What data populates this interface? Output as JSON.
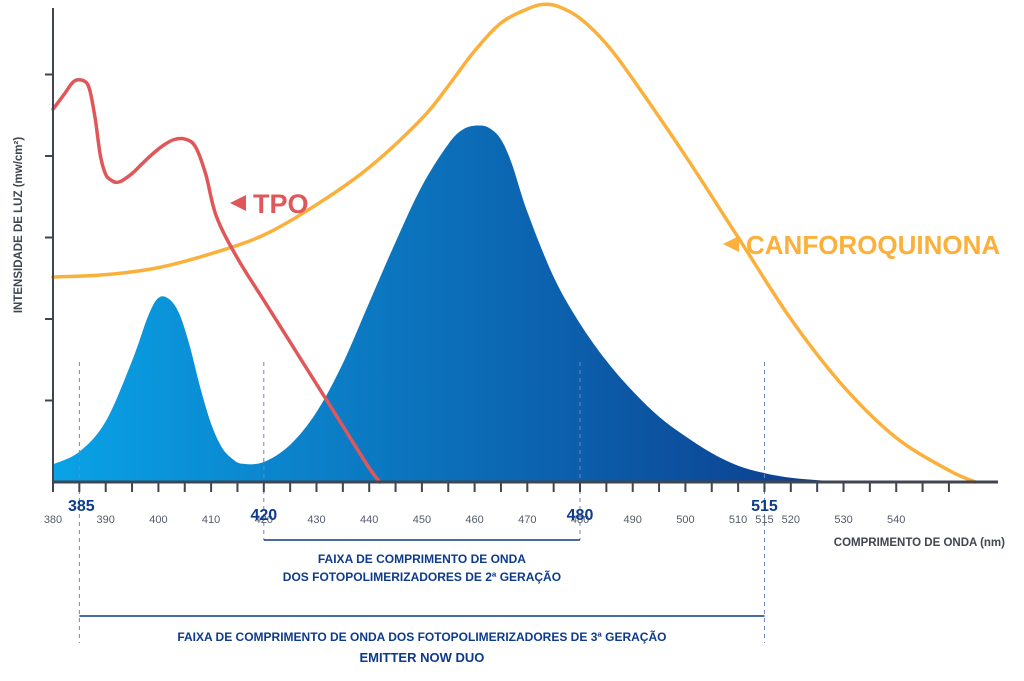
{
  "chart_data": {
    "type": "area",
    "xlabel": "COMPRIMENTO DE ONDA (nm)",
    "ylabel": "INTENSIDADE DE LUZ (mw/cm²)",
    "xlim": [
      380,
      554
    ],
    "ylim": [
      0,
      100
    ],
    "x_ticks": [
      380,
      390,
      400,
      410,
      420,
      430,
      440,
      450,
      460,
      470,
      480,
      490,
      500,
      510,
      515,
      520,
      530,
      540
    ],
    "highlighted_ticks": [
      385,
      420,
      480,
      515
    ],
    "y_tick_count": 6,
    "grid": false,
    "colors": {
      "tpo": "#e0575a",
      "canforoquinona": "#fbb03b",
      "emission_light": "#0aa2e6",
      "emission_dark": "#0d3b8c",
      "axis": "#3f4650",
      "ranges": "#0d3b8c"
    },
    "series": [
      {
        "name": "TPO",
        "kind": "line",
        "label": "TPO",
        "x": [
          380,
          382,
          384,
          386,
          387,
          388,
          389,
          390,
          391,
          392,
          393,
          395,
          397,
          399,
          401,
          403,
          405,
          407,
          409,
          411,
          415,
          420,
          425,
          430,
          435,
          440,
          442
        ],
        "y": [
          80,
          83,
          86,
          86,
          84,
          78,
          70,
          66,
          64.8,
          64.3,
          64.6,
          66.2,
          68.4,
          70.5,
          72.3,
          73.5,
          73.6,
          72.0,
          66.0,
          57.0,
          48.0,
          39.0,
          30.0,
          21.0,
          12.0,
          3.0,
          0
        ]
      },
      {
        "name": "CANFOROQUINONA",
        "kind": "line",
        "label": "CANFOROQUINONA",
        "x": [
          380,
          390,
          400,
          410,
          420,
          430,
          440,
          450,
          455,
          460,
          465,
          470,
          473,
          476,
          480,
          485,
          490,
          500,
          510,
          520,
          530,
          540,
          550,
          555
        ],
        "y": [
          44,
          44.5,
          46,
          49,
          53,
          59.5,
          67.5,
          78,
          85,
          92.5,
          98.5,
          101.5,
          102.5,
          102,
          99.5,
          94,
          86.5,
          70,
          52.5,
          35,
          20.5,
          9.5,
          2.5,
          0
        ]
      },
      {
        "name": "Emitter",
        "kind": "area",
        "x": [
          380,
          385,
          390,
          395,
          398,
          400,
          402,
          404,
          406,
          408,
          410,
          412,
          414,
          416,
          420,
          425,
          430,
          435,
          440,
          445,
          450,
          455,
          458,
          461,
          463,
          465,
          467,
          470,
          475,
          480,
          485,
          490,
          495,
          500,
          505,
          510,
          515,
          520,
          525,
          530,
          533
        ],
        "y": [
          3.8,
          6.5,
          13,
          26,
          35.5,
          39.5,
          39.3,
          36,
          29,
          20,
          12.5,
          7.5,
          5,
          3.9,
          4.3,
          8,
          15,
          25.5,
          38.5,
          51.5,
          63.5,
          72.5,
          75.8,
          76.5,
          75.8,
          73.5,
          68.5,
          58,
          44,
          34,
          26,
          19.5,
          14,
          9.8,
          6.2,
          3.5,
          1.9,
          0.9,
          0.4,
          0.1,
          0
        ]
      }
    ],
    "ranges": [
      {
        "from": 420,
        "to": 480,
        "label_line1": "FAIXA DE COMPRIMENTO DE ONDA",
        "label_line2": "DOS FOTOPOLIMERIZADORES DE 2ª GERAÇÃO"
      },
      {
        "from": 385,
        "to": 515,
        "label_line1": "FAIXA DE COMPRIMENTO DE ONDA DOS FOTOPOLIMERIZADORES DE 3ª GERAÇÃO",
        "label_line2": "EMITTER NOW DUO"
      }
    ]
  }
}
